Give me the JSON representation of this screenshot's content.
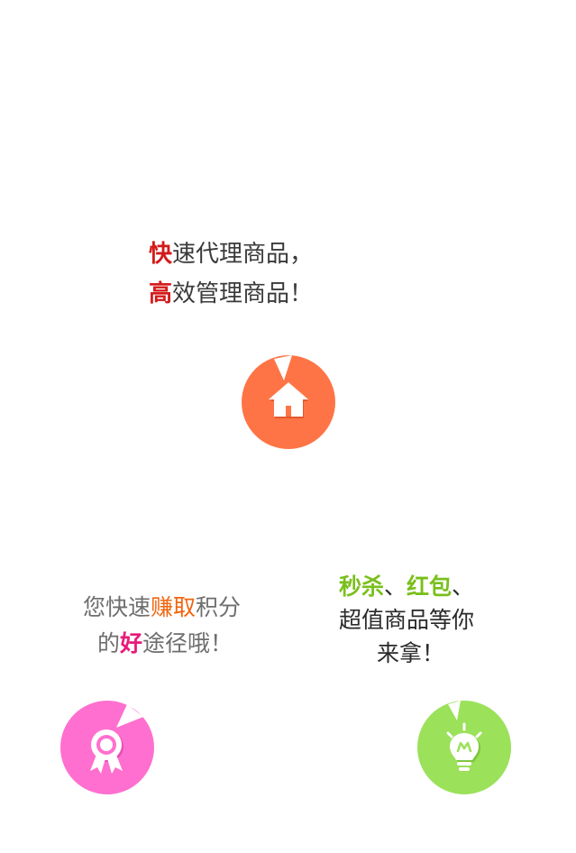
{
  "features": {
    "agency": {
      "line1": {
        "highlight": "快",
        "rest": "速代理商品，"
      },
      "line2": {
        "highlight": "高",
        "rest": "效管理商品！"
      },
      "icon": "home-icon",
      "color": "#ff7446"
    },
    "points": {
      "line1": {
        "pre": "您快速",
        "highlight": "赚取",
        "post": "积分"
      },
      "line2": {
        "pre": "的",
        "highlight": "好",
        "post": "途径哦！"
      },
      "icon": "award-ribbon-icon",
      "color": "#ff6fcf"
    },
    "deals": {
      "line1": {
        "hl1": "秒杀",
        "sep1": "、",
        "hl2": "红包",
        "sep2": "、"
      },
      "line2": "超值商品等你",
      "line3": "来拿！",
      "icon": "lightbulb-icon",
      "color": "#9be15a"
    }
  }
}
